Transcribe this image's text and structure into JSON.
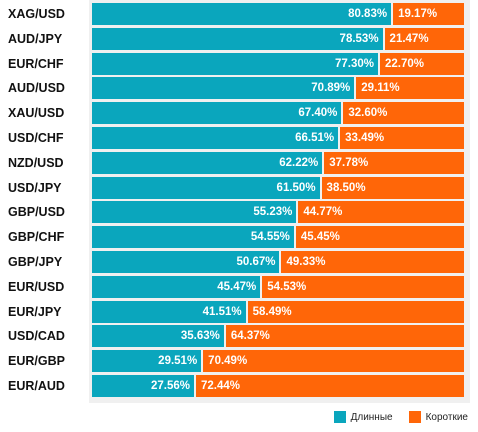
{
  "chart_data": {
    "type": "bar",
    "orientation": "horizontal",
    "stacked": true,
    "categories": [
      "XAG/USD",
      "AUD/JPY",
      "EUR/CHF",
      "AUD/USD",
      "XAU/USD",
      "USD/CHF",
      "NZD/USD",
      "USD/JPY",
      "GBP/USD",
      "GBP/CHF",
      "GBP/JPY",
      "EUR/USD",
      "EUR/JPY",
      "USD/CAD",
      "EUR/GBP",
      "EUR/AUD"
    ],
    "series": [
      {
        "name": "Длинные",
        "color": "#0aa6bd",
        "values": [
          80.83,
          78.53,
          77.3,
          70.89,
          67.4,
          66.51,
          62.22,
          61.5,
          55.23,
          54.55,
          50.67,
          45.47,
          41.51,
          35.63,
          29.51,
          27.56
        ]
      },
      {
        "name": "Короткие",
        "color": "#ff6608",
        "values": [
          19.17,
          21.47,
          22.7,
          29.11,
          32.6,
          33.49,
          37.78,
          38.5,
          44.77,
          45.45,
          49.33,
          54.53,
          58.49,
          64.37,
          70.49,
          72.44
        ]
      }
    ],
    "labels": {
      "long": [
        "80.83%",
        "78.53%",
        "77.30%",
        "70.89%",
        "67.40%",
        "66.51%",
        "62.22%",
        "61.50%",
        "55.23%",
        "54.55%",
        "50.67%",
        "45.47%",
        "41.51%",
        "35.63%",
        "29.51%",
        "27.56%"
      ],
      "short": [
        "19.17%",
        "21.47%",
        "22.70%",
        "29.11%",
        "32.60%",
        "33.49%",
        "37.78%",
        "38.50%",
        "44.77%",
        "45.45%",
        "49.33%",
        "54.53%",
        "58.49%",
        "64.37%",
        "70.49%",
        "72.44%"
      ]
    },
    "xlim": [
      0,
      100
    ],
    "grid": false,
    "legend_position": "bottom-right"
  }
}
